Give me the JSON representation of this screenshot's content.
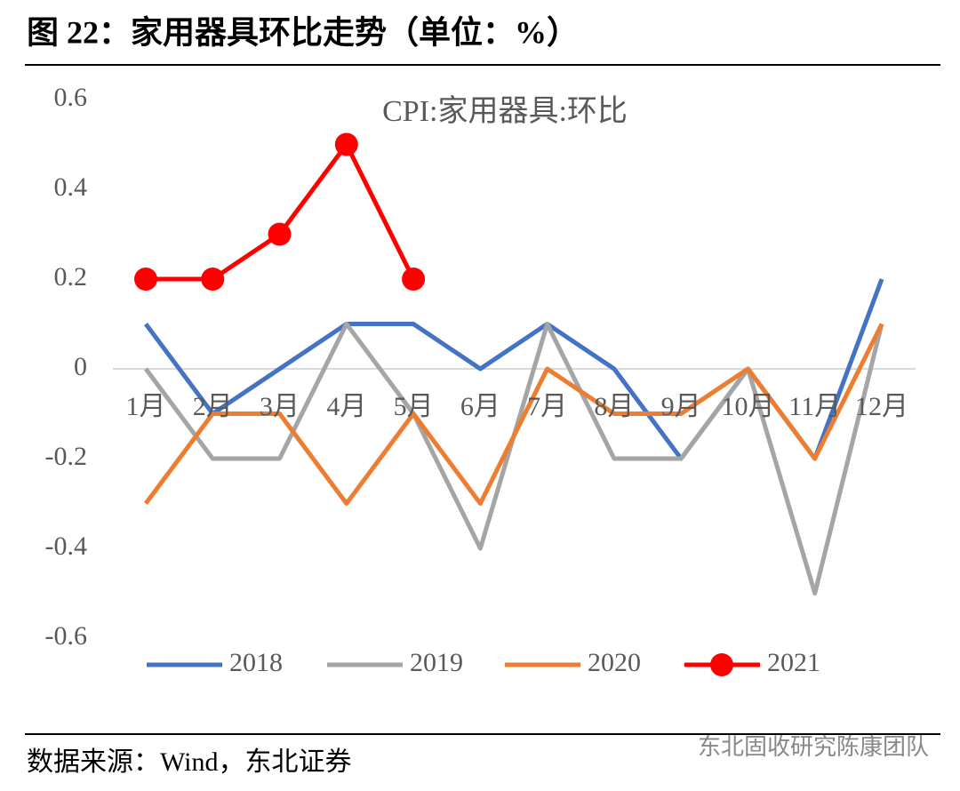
{
  "title": "图 22：家用器具环比走势（单位：%）",
  "chart_data": {
    "type": "line",
    "title": "CPI:家用器具:环比",
    "categories": [
      "1月",
      "2月",
      "3月",
      "4月",
      "5月",
      "6月",
      "7月",
      "8月",
      "9月",
      "10月",
      "11月",
      "12月"
    ],
    "series": [
      {
        "name": "2018",
        "color": "#4472c4",
        "marker": false,
        "values": [
          0.1,
          -0.1,
          0,
          0.1,
          0.1,
          0,
          0.1,
          0,
          -0.2,
          0,
          -0.2,
          0.2
        ]
      },
      {
        "name": "2019",
        "color": "#a5a5a5",
        "marker": false,
        "values": [
          0,
          -0.2,
          -0.2,
          0.1,
          -0.1,
          -0.4,
          0.1,
          -0.2,
          -0.2,
          0,
          -0.5,
          0.1
        ]
      },
      {
        "name": "2020",
        "color": "#ed7d31",
        "marker": false,
        "values": [
          -0.3,
          -0.1,
          -0.1,
          -0.3,
          -0.1,
          -0.3,
          0,
          -0.1,
          -0.1,
          0,
          -0.2,
          0.1
        ]
      },
      {
        "name": "2021",
        "color": "#ff0000",
        "marker": true,
        "values": [
          0.2,
          0.2,
          0.3,
          0.5,
          0.2,
          null,
          null,
          null,
          null,
          null,
          null,
          null
        ]
      }
    ],
    "ylim": [
      -0.6,
      0.6
    ],
    "yticks": [
      -0.6,
      -0.4,
      -0.2,
      0,
      0.2,
      0.4,
      0.6
    ],
    "legend": "bottom"
  },
  "source": "数据来源：Wind，东北证券",
  "watermark": "东北固收研究陈康团队"
}
